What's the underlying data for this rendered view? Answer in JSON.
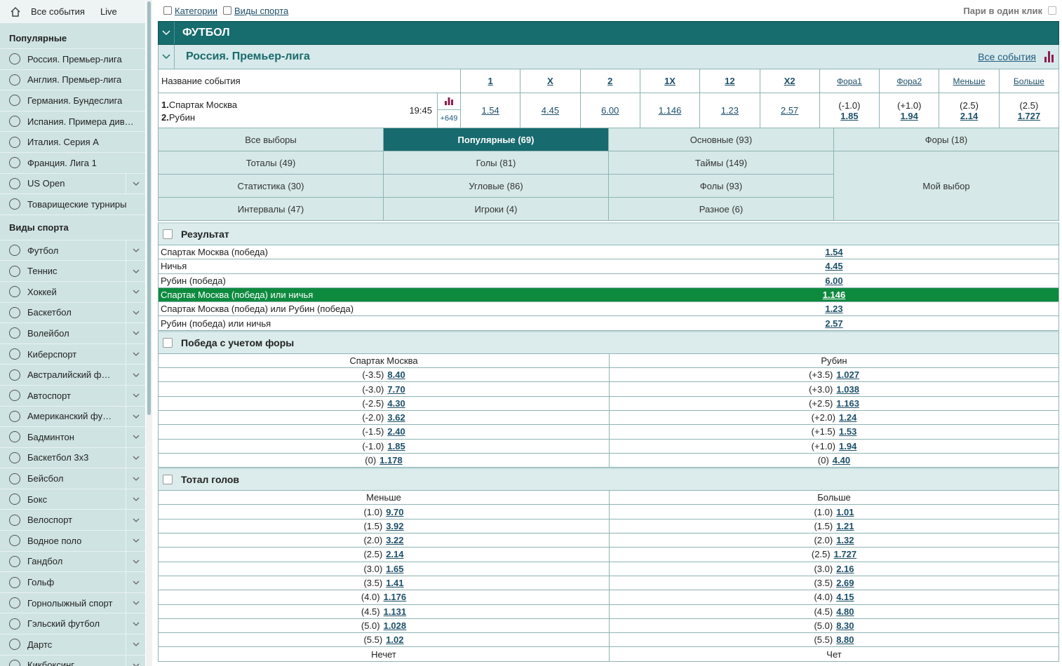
{
  "top_nav": {
    "all_events": "Все события",
    "live": "Live"
  },
  "sidebar": {
    "popular_title": "Популярные",
    "popular": [
      {
        "label": "Россия. Премьер-лига",
        "expandable": false
      },
      {
        "label": "Англия. Премьер-лига",
        "expandable": false
      },
      {
        "label": "Германия. Бундеслига",
        "expandable": false
      },
      {
        "label": "Испания. Примера див…",
        "expandable": false
      },
      {
        "label": "Италия. Серия А",
        "expandable": false
      },
      {
        "label": "Франция. Лига 1",
        "expandable": false
      },
      {
        "label": "US Open",
        "expandable": true
      },
      {
        "label": "Товарищеские турниры",
        "expandable": false
      }
    ],
    "sports_title": "Виды спорта",
    "sports": [
      "Футбол",
      "Теннис",
      "Хоккей",
      "Баскетбол",
      "Волейбол",
      "Киберспорт",
      "Австралийский ф…",
      "Автоспорт",
      "Американский фу…",
      "Бадминтон",
      "Баскетбол 3x3",
      "Бейсбол",
      "Бокс",
      "Велоспорт",
      "Водное поло",
      "Гандбол",
      "Гольф",
      "Горнолыжный спорт",
      "Гэльский футбол",
      "Дартс",
      "Кикбоксинг"
    ]
  },
  "filters": {
    "categories": "Категории",
    "sports": "Виды спорта",
    "one_click": "Пари в один клик"
  },
  "sport_header": "ФУТБОЛ",
  "league": {
    "title": "Россия. Премьер-лига",
    "all_events": "Все события"
  },
  "event_table": {
    "name_header": "Название события",
    "columns": [
      "1",
      "X",
      "2",
      "1X",
      "12",
      "X2",
      "Фора1",
      "Фора2",
      "Меньше",
      "Больше"
    ],
    "event": {
      "team1_number": "1.",
      "team1": "Спартак Москва",
      "team2_number": "2.",
      "team2": "Рубин",
      "time": "19:45",
      "more": "+649",
      "odds": [
        {
          "odd": "1.54"
        },
        {
          "odd": "4.45"
        },
        {
          "odd": "6.00"
        },
        {
          "odd": "1.146"
        },
        {
          "odd": "1.23"
        },
        {
          "odd": "2.57"
        },
        {
          "param": "(-1.0)",
          "odd": "1.85"
        },
        {
          "param": "(+1.0)",
          "odd": "1.94"
        },
        {
          "param": "(2.5)",
          "odd": "2.14"
        },
        {
          "param": "(2.5)",
          "odd": "1.727"
        }
      ]
    }
  },
  "tabs": {
    "rows": [
      [
        "Все выборы",
        "Популярные (69)",
        "Основные (93)",
        "Форы (18)"
      ],
      [
        "Тоталы (49)",
        "Голы (81)",
        "Таймы (149)"
      ],
      [
        "Статистика (30)",
        "Угловые (86)",
        "Фолы (93)"
      ],
      [
        "Интервалы (47)",
        "Игроки (4)",
        "Разное (6)"
      ]
    ],
    "my_choice": "Мой выбор",
    "active": [
      0,
      1
    ]
  },
  "result_market": {
    "title": "Результат",
    "highlighted_row": 3,
    "rows": [
      {
        "name": "Спартак Москва (победа)",
        "odd": "1.54"
      },
      {
        "name": "Ничья",
        "odd": "4.45"
      },
      {
        "name": "Рубин (победа)",
        "odd": "6.00"
      },
      {
        "name": "Спартак Москва (победа) или ничья",
        "odd": "1.146"
      },
      {
        "name": "Спартак Москва (победа) или Рубин (победа)",
        "odd": "1.23"
      },
      {
        "name": "Рубин (победа) или ничья",
        "odd": "2.57"
      }
    ]
  },
  "markets": [
    {
      "title": "Победа с учетом форы",
      "sections": [
        {
          "columns": [
            "Спартак Москва",
            "Рубин"
          ],
          "rows": [
            [
              {
                "param": "(-3.5)",
                "odd": "8.40"
              },
              {
                "param": "(+3.5)",
                "odd": "1.027"
              }
            ],
            [
              {
                "param": "(-3.0)",
                "odd": "7.70"
              },
              {
                "param": "(+3.0)",
                "odd": "1.038"
              }
            ],
            [
              {
                "param": "(-2.5)",
                "odd": "4.30"
              },
              {
                "param": "(+2.5)",
                "odd": "1.163"
              }
            ],
            [
              {
                "param": "(-2.0)",
                "odd": "3.62"
              },
              {
                "param": "(+2.0)",
                "odd": "1.24"
              }
            ],
            [
              {
                "param": "(-1.5)",
                "odd": "2.40"
              },
              {
                "param": "(+1.5)",
                "odd": "1.53"
              }
            ],
            [
              {
                "param": "(-1.0)",
                "odd": "1.85"
              },
              {
                "param": "(+1.0)",
                "odd": "1.94"
              }
            ],
            [
              {
                "param": "(0)",
                "odd": "1.178"
              },
              {
                "param": "(0)",
                "odd": "4.40"
              }
            ]
          ]
        }
      ]
    },
    {
      "title": "Тотал голов",
      "sections": [
        {
          "columns": [
            "Меньше",
            "Больше"
          ],
          "rows": [
            [
              {
                "param": "(1.0)",
                "odd": "9.70"
              },
              {
                "param": "(1.0)",
                "odd": "1.01"
              }
            ],
            [
              {
                "param": "(1.5)",
                "odd": "3.92"
              },
              {
                "param": "(1.5)",
                "odd": "1.21"
              }
            ],
            [
              {
                "param": "(2.0)",
                "odd": "3.22"
              },
              {
                "param": "(2.0)",
                "odd": "1.32"
              }
            ],
            [
              {
                "param": "(2.5)",
                "odd": "2.14"
              },
              {
                "param": "(2.5)",
                "odd": "1.727"
              }
            ],
            [
              {
                "param": "(3.0)",
                "odd": "1.65"
              },
              {
                "param": "(3.0)",
                "odd": "2.16"
              }
            ],
            [
              {
                "param": "(3.5)",
                "odd": "1.41"
              },
              {
                "param": "(3.5)",
                "odd": "2.69"
              }
            ],
            [
              {
                "param": "(4.0)",
                "odd": "1.176"
              },
              {
                "param": "(4.0)",
                "odd": "4.15"
              }
            ],
            [
              {
                "param": "(4.5)",
                "odd": "1.131"
              },
              {
                "param": "(4.5)",
                "odd": "4.80"
              }
            ],
            [
              {
                "param": "(5.0)",
                "odd": "1.028"
              },
              {
                "param": "(5.0)",
                "odd": "8.30"
              }
            ],
            [
              {
                "param": "(5.5)",
                "odd": "1.02"
              },
              {
                "param": "(5.5)",
                "odd": "8.80"
              }
            ]
          ]
        },
        {
          "columns": [
            "Нечет",
            "Чет"
          ],
          "rows": []
        }
      ]
    }
  ]
}
